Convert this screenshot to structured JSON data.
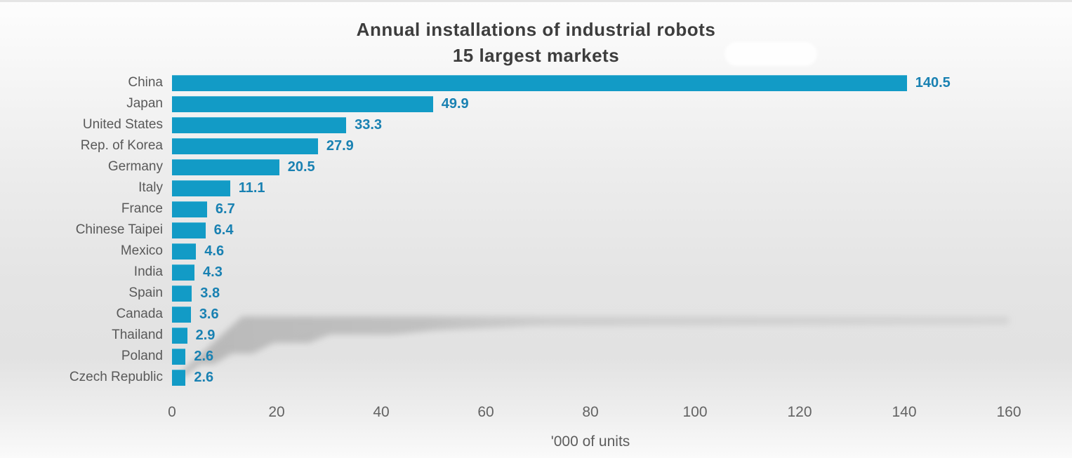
{
  "title": {
    "line1": "Annual installations of industrial robots",
    "line2": "15 largest markets"
  },
  "chart_data": {
    "type": "bar",
    "orientation": "horizontal",
    "title": "Annual installations of industrial robots",
    "subtitle": "15 largest markets",
    "categories": [
      "China",
      "Japan",
      "United States",
      "Rep. of Korea",
      "Germany",
      "Italy",
      "France",
      "Chinese Taipei",
      "Mexico",
      "India",
      "Spain",
      "Canada",
      "Thailand",
      "Poland",
      "Czech Republic"
    ],
    "values": [
      140.5,
      49.9,
      33.3,
      27.9,
      20.5,
      11.1,
      6.7,
      6.4,
      4.6,
      4.3,
      3.8,
      3.6,
      2.9,
      2.6,
      2.6
    ],
    "value_labels": [
      "140.5",
      "49.9",
      "33.3",
      "27.9",
      "20.5",
      "11.1",
      "6.7",
      "6.4",
      "4.6",
      "4.3",
      "3.8",
      "3.6",
      "2.9",
      "2.6",
      "2.6"
    ],
    "xlabel": "'000 of units",
    "ylabel": "",
    "xlim": [
      0,
      160
    ],
    "xticks": [
      0,
      20,
      40,
      60,
      80,
      100,
      120,
      140,
      160
    ],
    "grid": false,
    "legend": "none",
    "bar_color": "#129BC6",
    "value_label_color": "#1981B2",
    "category_label_color": "#595959",
    "tick_label_color": "#636363",
    "title_color": "#3d3d3d"
  }
}
